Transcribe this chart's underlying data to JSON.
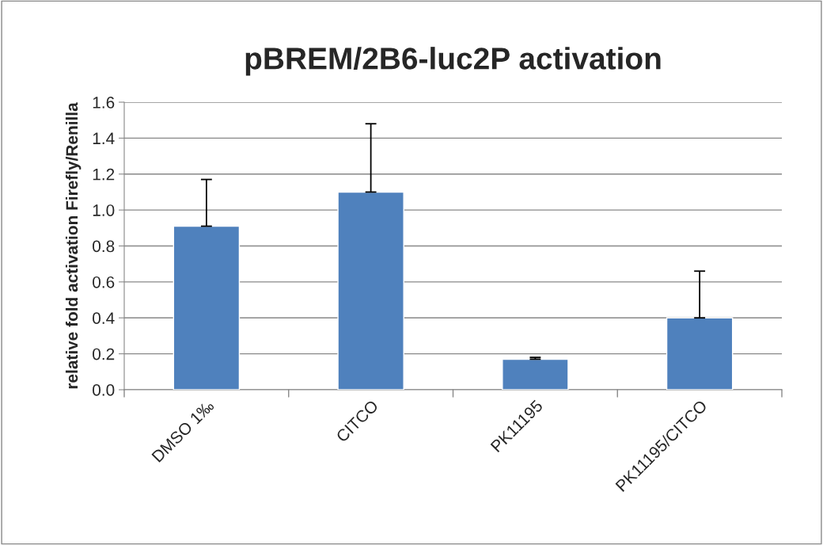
{
  "chart_data": {
    "type": "bar",
    "title": "pBREM/2B6-luc2P activation",
    "ylabel": "relative fold activation Firefly/Renilla",
    "categories": [
      "DMSO 1‰",
      "CITCO",
      "PK11195",
      "PK11195/CITCO"
    ],
    "values": [
      0.91,
      1.1,
      0.17,
      0.4
    ],
    "errors": [
      [
        0.91,
        1.17
      ],
      [
        1.1,
        1.48
      ],
      [
        0.17,
        0.18
      ],
      [
        0.4,
        0.66
      ]
    ],
    "color": "#4f81bd",
    "ylim": [
      0,
      1.6
    ],
    "yticks": [
      {
        "value": 0,
        "label": "0.0"
      },
      0.2,
      0.4,
      0.6,
      0.8,
      {
        "value": 1.0,
        "label": "1.0"
      },
      1.2,
      1.4,
      1.6
    ],
    "grid": "y",
    "legend": false
  }
}
